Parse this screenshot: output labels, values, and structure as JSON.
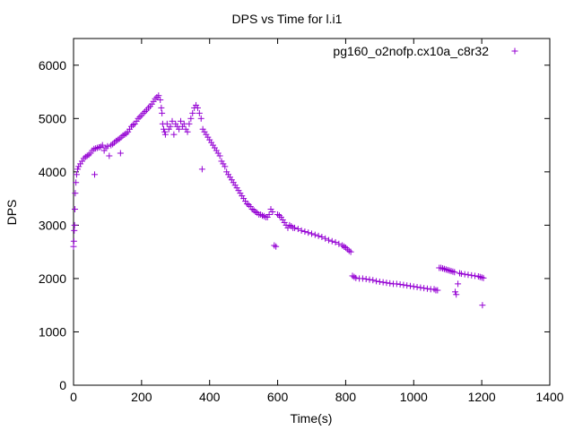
{
  "chart_data": {
    "type": "scatter",
    "title": "DPS vs Time for l.i1",
    "xlabel": "Time(s)",
    "ylabel": "DPS",
    "xlim": [
      0,
      1400
    ],
    "ylim": [
      0,
      6500
    ],
    "xticks": [
      0,
      200,
      400,
      600,
      800,
      1000,
      1200,
      1400
    ],
    "yticks": [
      0,
      1000,
      2000,
      3000,
      4000,
      5000,
      6000
    ],
    "grid": false,
    "legend_position": "top-right",
    "marker": "+",
    "color": "#9400D3",
    "series": [
      {
        "name": "pg160_o2nofp.cx10a_c8r32",
        "points": [
          [
            0,
            2600
          ],
          [
            1,
            2700
          ],
          [
            2,
            2900
          ],
          [
            3,
            3000
          ],
          [
            4,
            3300
          ],
          [
            5,
            3600
          ],
          [
            7,
            3800
          ],
          [
            9,
            3950
          ],
          [
            12,
            4050
          ],
          [
            15,
            4100
          ],
          [
            20,
            4150
          ],
          [
            25,
            4200
          ],
          [
            30,
            4250
          ],
          [
            35,
            4280
          ],
          [
            40,
            4300
          ],
          [
            45,
            4320
          ],
          [
            50,
            4350
          ],
          [
            55,
            4400
          ],
          [
            60,
            4430
          ],
          [
            62,
            3950
          ],
          [
            65,
            4440
          ],
          [
            70,
            4450
          ],
          [
            75,
            4460
          ],
          [
            80,
            4470
          ],
          [
            85,
            4500
          ],
          [
            90,
            4400
          ],
          [
            95,
            4450
          ],
          [
            100,
            4480
          ],
          [
            105,
            4300
          ],
          [
            110,
            4500
          ],
          [
            115,
            4520
          ],
          [
            120,
            4550
          ],
          [
            125,
            4580
          ],
          [
            130,
            4600
          ],
          [
            135,
            4620
          ],
          [
            138,
            4350
          ],
          [
            140,
            4650
          ],
          [
            145,
            4680
          ],
          [
            150,
            4700
          ],
          [
            155,
            4720
          ],
          [
            160,
            4750
          ],
          [
            165,
            4800
          ],
          [
            170,
            4850
          ],
          [
            175,
            4880
          ],
          [
            180,
            4900
          ],
          [
            185,
            4950
          ],
          [
            190,
            5000
          ],
          [
            195,
            5030
          ],
          [
            200,
            5060
          ],
          [
            205,
            5100
          ],
          [
            210,
            5130
          ],
          [
            215,
            5160
          ],
          [
            220,
            5200
          ],
          [
            225,
            5230
          ],
          [
            230,
            5270
          ],
          [
            235,
            5320
          ],
          [
            240,
            5370
          ],
          [
            245,
            5400
          ],
          [
            250,
            5430
          ],
          [
            255,
            5350
          ],
          [
            258,
            5200
          ],
          [
            260,
            5100
          ],
          [
            262,
            4900
          ],
          [
            265,
            4800
          ],
          [
            268,
            4750
          ],
          [
            270,
            4700
          ],
          [
            275,
            4900
          ],
          [
            280,
            4800
          ],
          [
            285,
            4850
          ],
          [
            290,
            4950
          ],
          [
            295,
            4700
          ],
          [
            300,
            4900
          ],
          [
            305,
            4850
          ],
          [
            310,
            4800
          ],
          [
            315,
            4950
          ],
          [
            320,
            4850
          ],
          [
            325,
            4900
          ],
          [
            330,
            4800
          ],
          [
            335,
            4750
          ],
          [
            340,
            4900
          ],
          [
            345,
            5000
          ],
          [
            350,
            5100
          ],
          [
            355,
            5200
          ],
          [
            360,
            5250
          ],
          [
            365,
            5200
          ],
          [
            370,
            5100
          ],
          [
            375,
            5000
          ],
          [
            378,
            4050
          ],
          [
            380,
            4800
          ],
          [
            385,
            4750
          ],
          [
            390,
            4700
          ],
          [
            395,
            4650
          ],
          [
            400,
            4600
          ],
          [
            405,
            4550
          ],
          [
            410,
            4500
          ],
          [
            415,
            4450
          ],
          [
            420,
            4400
          ],
          [
            425,
            4350
          ],
          [
            430,
            4300
          ],
          [
            435,
            4200
          ],
          [
            440,
            4150
          ],
          [
            445,
            4100
          ],
          [
            450,
            4000
          ],
          [
            455,
            3950
          ],
          [
            460,
            3900
          ],
          [
            465,
            3850
          ],
          [
            470,
            3800
          ],
          [
            475,
            3750
          ],
          [
            480,
            3700
          ],
          [
            485,
            3650
          ],
          [
            490,
            3600
          ],
          [
            495,
            3550
          ],
          [
            500,
            3500
          ],
          [
            505,
            3450
          ],
          [
            510,
            3400
          ],
          [
            515,
            3380
          ],
          [
            520,
            3350
          ],
          [
            525,
            3300
          ],
          [
            530,
            3280
          ],
          [
            535,
            3250
          ],
          [
            540,
            3230
          ],
          [
            545,
            3200
          ],
          [
            550,
            3200
          ],
          [
            555,
            3180
          ],
          [
            560,
            3170
          ],
          [
            565,
            3150
          ],
          [
            570,
            3150
          ],
          [
            575,
            3200
          ],
          [
            580,
            3300
          ],
          [
            585,
            3250
          ],
          [
            590,
            2620
          ],
          [
            595,
            2600
          ],
          [
            600,
            3200
          ],
          [
            605,
            3180
          ],
          [
            610,
            3150
          ],
          [
            615,
            3100
          ],
          [
            620,
            3050
          ],
          [
            625,
            3000
          ],
          [
            630,
            2950
          ],
          [
            635,
            3000
          ],
          [
            640,
            2980
          ],
          [
            645,
            2950
          ],
          [
            650,
            2950
          ],
          [
            660,
            2930
          ],
          [
            670,
            2900
          ],
          [
            680,
            2880
          ],
          [
            690,
            2860
          ],
          [
            700,
            2840
          ],
          [
            710,
            2820
          ],
          [
            720,
            2800
          ],
          [
            730,
            2780
          ],
          [
            740,
            2750
          ],
          [
            750,
            2720
          ],
          [
            760,
            2700
          ],
          [
            770,
            2680
          ],
          [
            780,
            2650
          ],
          [
            790,
            2620
          ],
          [
            795,
            2600
          ],
          [
            800,
            2580
          ],
          [
            805,
            2550
          ],
          [
            810,
            2520
          ],
          [
            815,
            2500
          ],
          [
            820,
            2050
          ],
          [
            825,
            2030
          ],
          [
            830,
            2010
          ],
          [
            840,
            2000
          ],
          [
            850,
            2000
          ],
          [
            860,
            1990
          ],
          [
            870,
            1980
          ],
          [
            880,
            1970
          ],
          [
            890,
            1950
          ],
          [
            900,
            1940
          ],
          [
            910,
            1930
          ],
          [
            920,
            1920
          ],
          [
            930,
            1910
          ],
          [
            940,
            1900
          ],
          [
            950,
            1900
          ],
          [
            960,
            1890
          ],
          [
            970,
            1880
          ],
          [
            980,
            1870
          ],
          [
            990,
            1860
          ],
          [
            1000,
            1850
          ],
          [
            1010,
            1840
          ],
          [
            1020,
            1830
          ],
          [
            1030,
            1820
          ],
          [
            1040,
            1810
          ],
          [
            1050,
            1800
          ],
          [
            1060,
            1800
          ],
          [
            1065,
            1780
          ],
          [
            1070,
            1780
          ],
          [
            1075,
            2200
          ],
          [
            1080,
            2200
          ],
          [
            1085,
            2190
          ],
          [
            1090,
            2180
          ],
          [
            1095,
            2170
          ],
          [
            1100,
            2160
          ],
          [
            1105,
            2150
          ],
          [
            1110,
            2140
          ],
          [
            1115,
            2130
          ],
          [
            1120,
            2120
          ],
          [
            1122,
            1750
          ],
          [
            1125,
            1700
          ],
          [
            1130,
            1900
          ],
          [
            1135,
            2100
          ],
          [
            1140,
            2090
          ],
          [
            1150,
            2080
          ],
          [
            1160,
            2070
          ],
          [
            1170,
            2060
          ],
          [
            1180,
            2050
          ],
          [
            1190,
            2040
          ],
          [
            1195,
            2030
          ],
          [
            1200,
            2020
          ],
          [
            1202,
            1500
          ],
          [
            1205,
            2010
          ]
        ]
      }
    ]
  }
}
